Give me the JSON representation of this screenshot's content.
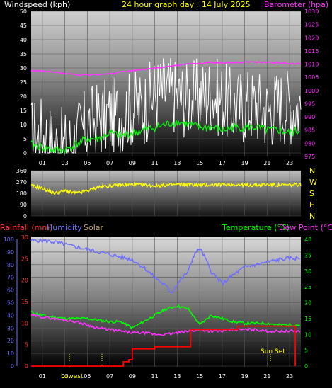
{
  "chart_data": [
    {
      "type": "line",
      "title": "24 hour graph day : 14 July 2025",
      "left_axis_label": "Windspeed (kph)",
      "right_axis_label": "Barometer (hpa)",
      "x_tick_labels": [
        "01",
        "03",
        "05",
        "07",
        "09",
        "11",
        "13",
        "15",
        "17",
        "19",
        "21",
        "23"
      ],
      "left_ticks": [
        "0",
        "5",
        "10",
        "15",
        "20",
        "25",
        "30",
        "35",
        "40",
        "45",
        "50"
      ],
      "right_ticks": [
        "975",
        "980",
        "985",
        "990",
        "995",
        "1000",
        "1005",
        "1010",
        "1015",
        "1020",
        "1025",
        "1030"
      ],
      "ylim_left": [
        0,
        50
      ],
      "ylim_right": [
        975,
        1030
      ],
      "series": [
        {
          "key": "gust",
          "hours": [
            0,
            1,
            2,
            3,
            4,
            5,
            6,
            7,
            8,
            9,
            10,
            11,
            12,
            13,
            14,
            15,
            16,
            17,
            18,
            19,
            20,
            21,
            22,
            23,
            24
          ],
          "values": [
            6,
            7,
            3,
            2,
            5,
            10,
            12,
            13,
            14,
            16,
            16,
            21,
            22,
            20,
            19,
            20,
            21,
            19,
            16,
            17,
            17,
            15,
            17,
            17,
            17
          ]
        },
        {
          "key": "average",
          "hours": [
            0,
            1,
            2,
            3,
            4,
            5,
            6,
            7,
            8,
            9,
            10,
            11,
            12,
            13,
            14,
            15,
            16,
            17,
            18,
            19,
            20,
            21,
            22,
            23,
            24
          ],
          "values": [
            3,
            2,
            1,
            1,
            3,
            5,
            5,
            7,
            6,
            7,
            8,
            9,
            10,
            11,
            10,
            9,
            9,
            8,
            9,
            9,
            9,
            8,
            8,
            7,
            8
          ]
        },
        {
          "key": "barometer",
          "hours": [
            0,
            2,
            4,
            5,
            6,
            8,
            10,
            12,
            14,
            16,
            18,
            20,
            22,
            24
          ],
          "values": [
            1007.5,
            1007,
            1006,
            1005.8,
            1006,
            1007,
            1008,
            1009,
            1010,
            1010.5,
            1010.5,
            1010.8,
            1010.5,
            1010
          ]
        }
      ]
    },
    {
      "type": "line",
      "right_axis_labels": [
        "N",
        "W",
        "S",
        "E",
        "N"
      ],
      "left_ticks": [
        "360",
        "270",
        "180",
        "90",
        "0"
      ],
      "ylim": [
        0,
        360
      ],
      "series": [
        {
          "key": "wind_direction",
          "hours": [
            0,
            1,
            2,
            3,
            4,
            5,
            6,
            7,
            8,
            9,
            10,
            11,
            12,
            13,
            14,
            15,
            16,
            17,
            18,
            19,
            20,
            21,
            22,
            23,
            24
          ],
          "values": [
            240,
            220,
            180,
            200,
            180,
            200,
            230,
            240,
            245,
            250,
            245,
            240,
            245,
            250,
            250,
            245,
            245,
            250,
            250,
            245,
            245,
            250,
            245,
            245,
            250
          ]
        }
      ]
    },
    {
      "type": "line",
      "legend": [
        "Rainfall (mm)",
        "Humidity",
        "Solar",
        "Temperature (°C)",
        "Dew Point (°C)"
      ],
      "x_tick_labels": [
        "01",
        "03",
        "05",
        "07",
        "09",
        "11",
        "13",
        "15",
        "17",
        "19",
        "21",
        "23"
      ],
      "humidity_ticks": [
        "0",
        "10",
        "20",
        "30",
        "40",
        "50",
        "60",
        "70",
        "80",
        "90",
        "100"
      ],
      "rain_ticks": [
        "0",
        "5",
        "10",
        "15",
        "20",
        "25",
        "30"
      ],
      "temp_ticks": [
        "0",
        "5",
        "10",
        "15",
        "20",
        "25",
        "30",
        "35",
        "40"
      ],
      "ylim_humidity": [
        0,
        100
      ],
      "ylim_temperature": [
        0,
        40
      ],
      "ylim_rain": [
        0,
        30
      ],
      "annotations": {
        "low_sun": "Lowest",
        "sun_set": "Sun Set"
      },
      "series": [
        {
          "key": "humidity",
          "hours": [
            0,
            1,
            2,
            3,
            4,
            5,
            6,
            7,
            8,
            9,
            10,
            11,
            12,
            12.5,
            13,
            14,
            14.5,
            15,
            15.5,
            16,
            17,
            18,
            19,
            20,
            21,
            22,
            23,
            24
          ],
          "values": [
            99,
            99,
            98,
            96,
            94,
            92,
            90,
            88,
            86,
            84,
            78,
            70,
            63,
            58,
            65,
            75,
            88,
            93,
            85,
            75,
            65,
            72,
            78,
            80,
            82,
            84,
            85,
            85
          ]
        },
        {
          "key": "temperature",
          "hours": [
            0,
            1,
            2,
            3,
            4,
            5,
            6,
            7,
            8,
            9,
            10,
            11,
            12,
            13,
            14,
            15,
            16,
            17,
            18,
            19,
            20,
            21,
            22,
            23,
            24
          ],
          "values": [
            17,
            16,
            15.5,
            15,
            15,
            15,
            14.5,
            14,
            14,
            12,
            14,
            16,
            18,
            19,
            18,
            13,
            16,
            15,
            14,
            13.5,
            13.5,
            13.5,
            13,
            13,
            13
          ]
        },
        {
          "key": "dew_point",
          "hours": [
            0,
            1,
            2,
            3,
            4,
            5,
            6,
            7,
            8,
            9,
            10,
            11,
            12,
            13,
            14,
            15,
            16,
            17,
            18,
            19,
            20,
            21,
            22,
            23,
            24
          ],
          "values": [
            16,
            15.5,
            15,
            14.5,
            14,
            13,
            12,
            11.5,
            11,
            10.5,
            10.5,
            10,
            10,
            10.5,
            11,
            11.5,
            11,
            11,
            11.5,
            11.5,
            11.5,
            11,
            11,
            11,
            11
          ]
        },
        {
          "key": "rainfall",
          "hours": [
            0,
            7.8,
            8.2,
            8.7,
            9,
            10.7,
            11,
            14,
            14.2,
            18,
            18.4,
            23.3,
            23.5
          ],
          "values": [
            0,
            0,
            1,
            1.5,
            4,
            4,
            4.5,
            4.5,
            8.5,
            8.5,
            9.3,
            9.3,
            0
          ]
        }
      ]
    }
  ]
}
